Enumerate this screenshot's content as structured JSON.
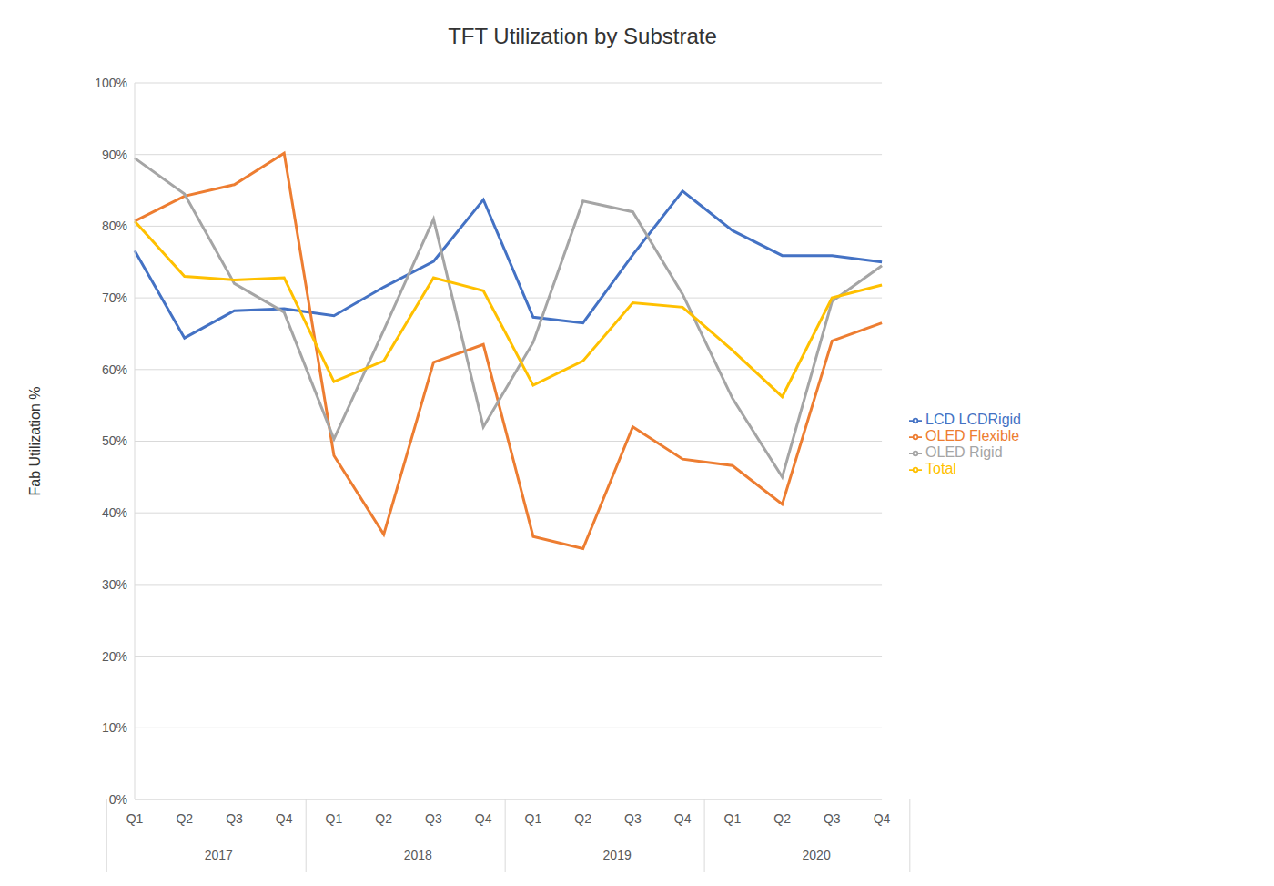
{
  "chart_data": {
    "type": "line",
    "title": "TFT Utilization by Substrate",
    "y_label": "Fab Utilization %",
    "categories": [
      "Q1",
      "Q2",
      "Q3",
      "Q4",
      "Q1",
      "Q2",
      "Q3",
      "Q4",
      "Q1",
      "Q2",
      "Q3",
      "Q4",
      "Q1",
      "Q2",
      "Q3",
      "Q4"
    ],
    "category_groups": [
      "2017",
      "2018",
      "2019",
      "2020"
    ],
    "series": [
      {
        "name": "LCD LCDRigid",
        "color": "#4472c4",
        "values": [
          76.6,
          64.4,
          68.2,
          68.5,
          67.5,
          71.5,
          75.1,
          83.7,
          67.3,
          66.5,
          76,
          84.9,
          79.4,
          75.9,
          75.9,
          75
        ]
      },
      {
        "name": "OLED Flexible",
        "color": "#ed7d31",
        "values": [
          80.7,
          84.2,
          85.8,
          90.2,
          48,
          37,
          61,
          63.5,
          36.7,
          35,
          52,
          47.5,
          46.6,
          41.2,
          64,
          66.5
        ]
      },
      {
        "name": "OLED Rigid",
        "color": "#a5a5a5",
        "values": [
          89.5,
          84.5,
          72,
          68,
          50.3,
          65.5,
          81,
          52,
          63.8,
          83.5,
          82,
          70.5,
          56,
          45,
          69.5,
          74.5
        ]
      },
      {
        "name": "Total",
        "color": "#ffc000",
        "values": [
          80.7,
          73,
          72.5,
          72.8,
          58.3,
          61.2,
          72.8,
          71,
          57.8,
          61.2,
          69.3,
          68.7,
          62.7,
          56.2,
          70,
          71.8
        ]
      }
    ],
    "ylim": [
      0,
      100
    ],
    "yticks": [
      {
        "value": 0,
        "label": "0%"
      },
      {
        "value": 10,
        "label": "10%"
      },
      {
        "value": 20,
        "label": "20%"
      },
      {
        "value": 30,
        "label": "30%"
      },
      {
        "value": 40,
        "label": "40%"
      },
      {
        "value": 50,
        "label": "50%"
      },
      {
        "value": 60,
        "label": "60%"
      },
      {
        "value": 70,
        "label": "70%"
      },
      {
        "value": 80,
        "label": "80%"
      },
      {
        "value": 90,
        "label": "90%"
      },
      {
        "value": 100,
        "label": "100%"
      }
    ],
    "grid": true,
    "legend": "right"
  }
}
